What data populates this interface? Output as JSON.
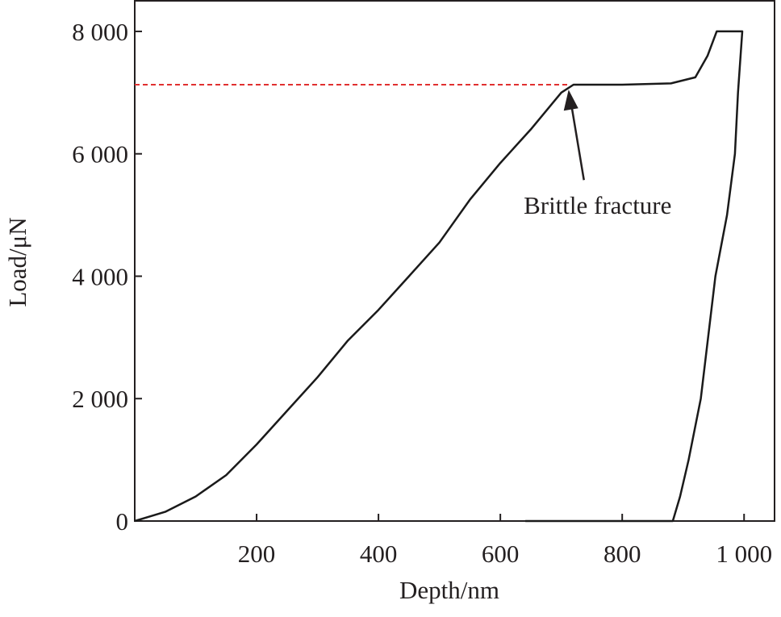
{
  "chart_data": {
    "type": "line",
    "x_label": "Depth/nm",
    "y_label": "Load/μN",
    "xlim": [
      0,
      1050
    ],
    "ylim": [
      0,
      8500
    ],
    "xticks": [
      200,
      400,
      600,
      800,
      {
        "value": 1000,
        "label": "1 000"
      }
    ],
    "yticks": [
      0,
      {
        "value": 2000,
        "label": "2 000"
      },
      {
        "value": 4000,
        "label": "4 000"
      },
      {
        "value": 6000,
        "label": "6 000"
      },
      {
        "value": 8000,
        "label": "8 000"
      }
    ],
    "series": [
      {
        "color": "#1a1a1a",
        "x": [
          0,
          20,
          50,
          100,
          150,
          200,
          250,
          300,
          350,
          400,
          450,
          500,
          550,
          600,
          650,
          700,
          720,
          800,
          880,
          920,
          940,
          955,
          997,
          990,
          985,
          972,
          953,
          929,
          909,
          895,
          883,
          800,
          641
        ],
        "values": [
          0,
          60,
          150,
          400,
          750,
          1250,
          1800,
          2350,
          2950,
          3450,
          4000,
          4550,
          5250,
          5850,
          6400,
          7000,
          7130,
          7130,
          7150,
          7250,
          7600,
          8000,
          8000,
          7000,
          6000,
          5000,
          4000,
          2000,
          1000,
          400,
          0,
          0,
          0
        ]
      },
      {
        "color": "#e03030",
        "dashed": true,
        "x": [
          0,
          710
        ],
        "values": [
          7130,
          7130
        ]
      }
    ],
    "annotations": [
      {
        "text": "Brittle fracture",
        "x": 712,
        "y": 7100
      }
    ]
  }
}
